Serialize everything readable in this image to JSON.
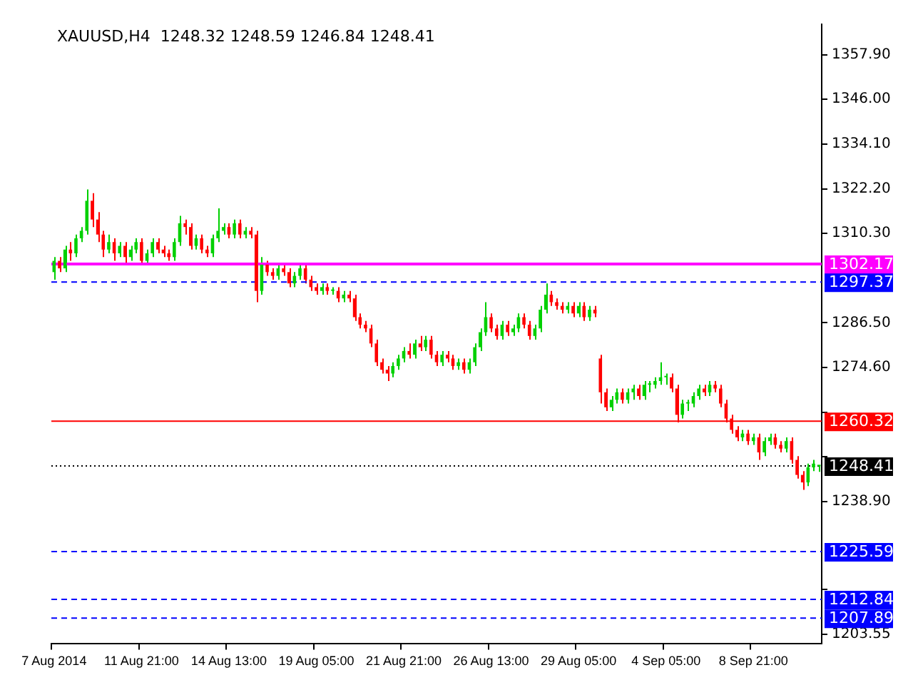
{
  "chart_data": {
    "type": "candlestick",
    "title": "XAUUSD,H4  1248.32 1248.59 1246.84 1248.41",
    "categories": [
      "7 Aug 2014",
      null,
      null,
      null,
      null,
      null,
      null,
      null,
      null,
      null,
      null,
      null,
      null,
      null,
      null,
      null,
      "11 Aug 21:00",
      null,
      null,
      null,
      null,
      null,
      null,
      null,
      null,
      null,
      null,
      null,
      null,
      null,
      null,
      null,
      "14 Aug 13:00",
      null,
      null,
      null,
      null,
      null,
      null,
      null,
      null,
      null,
      null,
      null,
      null,
      null,
      null,
      null,
      "19 Aug 05:00",
      null,
      null,
      null,
      null,
      null,
      null,
      null,
      null,
      null,
      null,
      null,
      null,
      null,
      null,
      null,
      "21 Aug 21:00",
      null,
      null,
      null,
      null,
      null,
      null,
      null,
      null,
      null,
      null,
      null,
      null,
      null,
      null,
      null,
      "26 Aug 13:00",
      null,
      null,
      null,
      null,
      null,
      null,
      null,
      null,
      null,
      null,
      null,
      null,
      null,
      null,
      null,
      "29 Aug 05:00",
      null,
      null,
      null,
      null,
      null,
      null,
      null,
      null,
      null,
      null,
      null,
      null,
      null,
      null,
      null,
      "4 Sep 05:00",
      null,
      null,
      null,
      null,
      null,
      null,
      null,
      null,
      null,
      null,
      null,
      null,
      null,
      null,
      null,
      "8 Sep 21:00",
      null,
      null,
      null,
      null,
      null,
      null,
      null,
      null,
      null,
      null,
      null,
      null
    ],
    "ohlc": [
      [
        1300,
        1304,
        1298,
        1303
      ],
      [
        1303,
        1304,
        1300,
        1301
      ],
      [
        1301,
        1307,
        1300,
        1306
      ],
      [
        1306,
        1308,
        1303,
        1305
      ],
      [
        1305,
        1310,
        1304,
        1309
      ],
      [
        1309,
        1312,
        1308,
        1311
      ],
      [
        1311,
        1322,
        1310,
        1319
      ],
      [
        1319,
        1321,
        1312,
        1314
      ],
      [
        1314,
        1316,
        1308,
        1310
      ],
      [
        1310,
        1311,
        1304,
        1306
      ],
      [
        1306,
        1310,
        1305,
        1308
      ],
      [
        1308,
        1309,
        1303,
        1305
      ],
      [
        1305,
        1308,
        1304,
        1307
      ],
      [
        1307,
        1308,
        1302,
        1304
      ],
      [
        1304,
        1307,
        1303,
        1306
      ],
      [
        1306,
        1309,
        1305,
        1308
      ],
      [
        1308,
        1309,
        1302,
        1303
      ],
      [
        1303,
        1306,
        1302,
        1305
      ],
      [
        1305,
        1309,
        1304,
        1308
      ],
      [
        1308,
        1309,
        1305,
        1306
      ],
      [
        1306,
        1307,
        1304,
        1305
      ],
      [
        1305,
        1306,
        1303,
        1304
      ],
      [
        1304,
        1309,
        1303,
        1308
      ],
      [
        1308,
        1315,
        1307,
        1313
      ],
      [
        1313,
        1314,
        1310,
        1312
      ],
      [
        1312,
        1313,
        1306,
        1307
      ],
      [
        1307,
        1310,
        1306,
        1309
      ],
      [
        1309,
        1310,
        1305,
        1306
      ],
      [
        1306,
        1307,
        1304,
        1305
      ],
      [
        1305,
        1310,
        1304,
        1309
      ],
      [
        1309,
        1317,
        1308,
        1311
      ],
      [
        1311,
        1313,
        1310,
        1312
      ],
      [
        1312,
        1313,
        1309,
        1310
      ],
      [
        1310,
        1314,
        1309,
        1313
      ],
      [
        1313,
        1314,
        1309,
        1310
      ],
      [
        1310,
        1312,
        1309,
        1311
      ],
      [
        1311,
        1312,
        1309,
        1310
      ],
      [
        1310,
        1311,
        1292,
        1295
      ],
      [
        1295,
        1304,
        1294,
        1302
      ],
      [
        1302,
        1303,
        1299,
        1300
      ],
      [
        1300,
        1301,
        1298,
        1299
      ],
      [
        1299,
        1302,
        1298,
        1301
      ],
      [
        1301,
        1302,
        1299,
        1300
      ],
      [
        1300,
        1301,
        1296,
        1297
      ],
      [
        1297,
        1300,
        1296,
        1299
      ],
      [
        1299,
        1302,
        1298,
        1301
      ],
      [
        1301,
        1302,
        1297,
        1298
      ],
      [
        1298,
        1299,
        1295,
        1296
      ],
      [
        1296,
        1297,
        1294,
        1295
      ],
      [
        1295,
        1297,
        1294,
        1296
      ],
      [
        1296,
        1297,
        1294,
        1295
      ],
      [
        1295,
        1296,
        1294,
        1295
      ],
      [
        1295,
        1296,
        1292,
        1293
      ],
      [
        1293,
        1295,
        1292,
        1294
      ],
      [
        1294,
        1295,
        1292,
        1293
      ],
      [
        1293,
        1294,
        1287,
        1288
      ],
      [
        1288,
        1289,
        1285,
        1286
      ],
      [
        1286,
        1287,
        1284,
        1285
      ],
      [
        1285,
        1286,
        1280,
        1281
      ],
      [
        1281,
        1282,
        1275,
        1276
      ],
      [
        1276,
        1277,
        1273,
        1274
      ],
      [
        1274,
        1275,
        1271,
        1273
      ],
      [
        1273,
        1276,
        1272,
        1275
      ],
      [
        1275,
        1278,
        1274,
        1277
      ],
      [
        1277,
        1280,
        1276,
        1279
      ],
      [
        1279,
        1281,
        1277,
        1278
      ],
      [
        1278,
        1282,
        1277,
        1281
      ],
      [
        1281,
        1283,
        1279,
        1280
      ],
      [
        1280,
        1283,
        1279,
        1282
      ],
      [
        1282,
        1283,
        1277,
        1278
      ],
      [
        1278,
        1279,
        1275,
        1276
      ],
      [
        1276,
        1279,
        1275,
        1278
      ],
      [
        1278,
        1279,
        1276,
        1277
      ],
      [
        1277,
        1278,
        1274,
        1275
      ],
      [
        1275,
        1277,
        1274,
        1276
      ],
      [
        1276,
        1277,
        1273,
        1274
      ],
      [
        1274,
        1277,
        1273,
        1276
      ],
      [
        1276,
        1281,
        1275,
        1280
      ],
      [
        1280,
        1285,
        1279,
        1284
      ],
      [
        1284,
        1292,
        1283,
        1288
      ],
      [
        1288,
        1289,
        1284,
        1285
      ],
      [
        1285,
        1286,
        1282,
        1283
      ],
      [
        1283,
        1287,
        1282,
        1286
      ],
      [
        1286,
        1287,
        1283,
        1284
      ],
      [
        1284,
        1286,
        1283,
        1285
      ],
      [
        1285,
        1289,
        1284,
        1288
      ],
      [
        1288,
        1289,
        1285,
        1286
      ],
      [
        1286,
        1287,
        1282,
        1283
      ],
      [
        1283,
        1286,
        1282,
        1285
      ],
      [
        1285,
        1291,
        1284,
        1290
      ],
      [
        1290,
        1297,
        1289,
        1294
      ],
      [
        1294,
        1295,
        1291,
        1292
      ],
      [
        1292,
        1293,
        1290,
        1291
      ],
      [
        1291,
        1292,
        1289,
        1290
      ],
      [
        1290,
        1292,
        1289,
        1291
      ],
      [
        1291,
        1292,
        1288,
        1289
      ],
      [
        1289,
        1292,
        1288,
        1291
      ],
      [
        1291,
        1292,
        1287,
        1288
      ],
      [
        1288,
        1291,
        1287,
        1290
      ],
      [
        1290,
        1291,
        1288,
        1289
      ],
      [
        1277,
        1278,
        1265,
        1268
      ],
      [
        1268,
        1269,
        1263,
        1264
      ],
      [
        1264,
        1267,
        1263,
        1266
      ],
      [
        1266,
        1269,
        1265,
        1268
      ],
      [
        1268,
        1269,
        1265,
        1266
      ],
      [
        1266,
        1269,
        1265,
        1268
      ],
      [
        1268,
        1270,
        1266,
        1269
      ],
      [
        1269,
        1270,
        1266,
        1267
      ],
      [
        1267,
        1271,
        1266,
        1270
      ],
      [
        1270,
        1271,
        1268,
        1270
      ],
      [
        1270,
        1272,
        1269,
        1271
      ],
      [
        1271,
        1276,
        1270,
        1272
      ],
      [
        1272,
        1273,
        1270,
        1272
      ],
      [
        1272,
        1273,
        1268,
        1269
      ],
      [
        1269,
        1270,
        1260,
        1262
      ],
      [
        1262,
        1266,
        1261,
        1265
      ],
      [
        1265,
        1266,
        1263,
        1265
      ],
      [
        1265,
        1268,
        1264,
        1267
      ],
      [
        1267,
        1270,
        1266,
        1269
      ],
      [
        1269,
        1270,
        1267,
        1268
      ],
      [
        1268,
        1271,
        1267,
        1270
      ],
      [
        1270,
        1271,
        1268,
        1269
      ],
      [
        1269,
        1270,
        1264,
        1265
      ],
      [
        1265,
        1266,
        1260,
        1261
      ],
      [
        1261,
        1262,
        1257,
        1258
      ],
      [
        1258,
        1259,
        1255,
        1256
      ],
      [
        1256,
        1258,
        1255,
        1257
      ],
      [
        1257,
        1258,
        1254,
        1255
      ],
      [
        1255,
        1257,
        1254,
        1256
      ],
      [
        1256,
        1257,
        1250,
        1252
      ],
      [
        1252,
        1256,
        1251,
        1255
      ],
      [
        1255,
        1257,
        1254,
        1256
      ],
      [
        1256,
        1257,
        1253,
        1254
      ],
      [
        1254,
        1255,
        1252,
        1253
      ],
      [
        1253,
        1256,
        1252,
        1255
      ],
      [
        1255,
        1256,
        1249,
        1250
      ],
      [
        1250,
        1251,
        1245,
        1246
      ],
      [
        1246,
        1247,
        1242,
        1244
      ],
      [
        1244,
        1249,
        1243,
        1248
      ],
      [
        1248,
        1250,
        1247,
        1249
      ],
      [
        1248.32,
        1248.59,
        1246.84,
        1248.41
      ]
    ],
    "ylim": [
      1201,
      1366
    ],
    "yticks": [
      {
        "value": 1357.9,
        "label": "1357.90"
      },
      {
        "value": 1346,
        "label": "1346.00"
      },
      {
        "value": 1334.1,
        "label": "1334.10"
      },
      {
        "value": 1322.2,
        "label": "1322.20"
      },
      {
        "value": 1310.3,
        "label": "1310.30"
      },
      {
        "value": 1286.5,
        "label": "1286.50"
      },
      {
        "value": 1274.6,
        "label": "1274.60"
      },
      {
        "value": 1262.7,
        "label": null
      },
      {
        "value": 1250.8,
        "label": null
      },
      {
        "value": 1238.9,
        "label": "1238.90"
      },
      {
        "value": 1215.45,
        "label": null
      },
      {
        "value": 1203.55,
        "label": "1203.55"
      }
    ],
    "ref_lines": [
      {
        "axis": "y",
        "value": 1302.17,
        "label": "1302.17",
        "color": "#ff00ff",
        "line_style": "solid"
      },
      {
        "axis": "y",
        "value": 1297.37,
        "label": "1297.37",
        "color": "#0000ff",
        "line_style": "dashed"
      },
      {
        "axis": "y",
        "value": 1260.32,
        "label": "1260.32",
        "color": "#ff0000",
        "line_style": "solid"
      },
      {
        "axis": "y",
        "value": 1248.41,
        "label": "1248.41",
        "color": "#000000",
        "line_style": "dotted"
      },
      {
        "axis": "y",
        "value": 1225.59,
        "label": "1225.59",
        "color": "#0000ff",
        "line_style": "dashed"
      },
      {
        "axis": "y",
        "value": 1212.84,
        "label": "1212.84",
        "color": "#0000ff",
        "line_style": "dashed"
      },
      {
        "axis": "y",
        "value": 1207.89,
        "label": "1207.89",
        "color": "#0000ff",
        "line_style": "dashed"
      }
    ],
    "grid": false,
    "legend": false
  }
}
